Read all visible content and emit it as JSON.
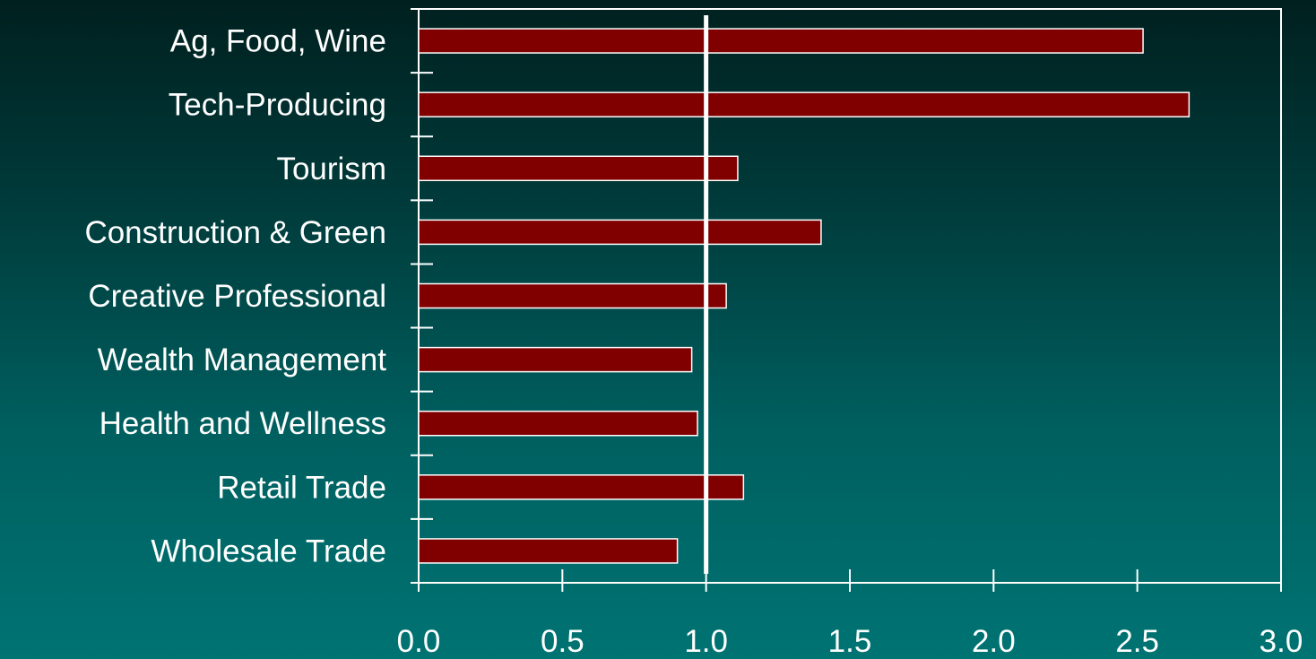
{
  "chart_data": {
    "type": "bar",
    "orientation": "horizontal",
    "title": "",
    "xlabel": "",
    "ylabel": "",
    "categories": [
      "Ag, Food, Wine",
      "Tech-Producing",
      "Tourism",
      "Construction & Green",
      "Creative Professional",
      "Wealth Management",
      "Health and Wellness",
      "Retail Trade",
      "Wholesale Trade"
    ],
    "values": [
      2.52,
      2.68,
      1.11,
      1.4,
      1.07,
      0.95,
      0.97,
      1.13,
      0.9
    ],
    "xlim": [
      0,
      3.0
    ],
    "xticks": [
      0,
      0.5,
      1.0,
      1.5,
      2.0,
      2.5,
      3.0
    ],
    "xtick_labels": [
      "0.0",
      "0.5",
      "1.0",
      "1.5",
      "2.0",
      "2.5",
      "3.0"
    ],
    "reference_line": 1.0,
    "grid": false,
    "legend": "none",
    "bar_color": "#800000",
    "bar_edge_color": "#ffffff",
    "axis_color": "#ffffff",
    "text_color": "#ffffff"
  }
}
